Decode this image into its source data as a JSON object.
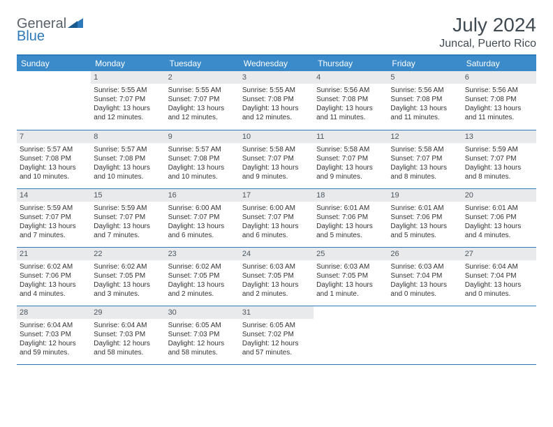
{
  "logo": {
    "line1": "General",
    "line2": "Blue"
  },
  "title": "July 2024",
  "location": "Juncal, Puerto Rico",
  "dayHeaders": [
    "Sunday",
    "Monday",
    "Tuesday",
    "Wednesday",
    "Thursday",
    "Friday",
    "Saturday"
  ],
  "colors": {
    "header_bg": "#3b8aca",
    "border": "#2e79b9",
    "daynum_bg": "#e8eaec",
    "text": "#333333"
  },
  "weeks": [
    [
      null,
      {
        "n": "1",
        "sr": "Sunrise: 5:55 AM",
        "ss": "Sunset: 7:07 PM",
        "dl": "Daylight: 13 hours and 12 minutes."
      },
      {
        "n": "2",
        "sr": "Sunrise: 5:55 AM",
        "ss": "Sunset: 7:07 PM",
        "dl": "Daylight: 13 hours and 12 minutes."
      },
      {
        "n": "3",
        "sr": "Sunrise: 5:55 AM",
        "ss": "Sunset: 7:08 PM",
        "dl": "Daylight: 13 hours and 12 minutes."
      },
      {
        "n": "4",
        "sr": "Sunrise: 5:56 AM",
        "ss": "Sunset: 7:08 PM",
        "dl": "Daylight: 13 hours and 11 minutes."
      },
      {
        "n": "5",
        "sr": "Sunrise: 5:56 AM",
        "ss": "Sunset: 7:08 PM",
        "dl": "Daylight: 13 hours and 11 minutes."
      },
      {
        "n": "6",
        "sr": "Sunrise: 5:56 AM",
        "ss": "Sunset: 7:08 PM",
        "dl": "Daylight: 13 hours and 11 minutes."
      }
    ],
    [
      {
        "n": "7",
        "sr": "Sunrise: 5:57 AM",
        "ss": "Sunset: 7:08 PM",
        "dl": "Daylight: 13 hours and 10 minutes."
      },
      {
        "n": "8",
        "sr": "Sunrise: 5:57 AM",
        "ss": "Sunset: 7:08 PM",
        "dl": "Daylight: 13 hours and 10 minutes."
      },
      {
        "n": "9",
        "sr": "Sunrise: 5:57 AM",
        "ss": "Sunset: 7:08 PM",
        "dl": "Daylight: 13 hours and 10 minutes."
      },
      {
        "n": "10",
        "sr": "Sunrise: 5:58 AM",
        "ss": "Sunset: 7:07 PM",
        "dl": "Daylight: 13 hours and 9 minutes."
      },
      {
        "n": "11",
        "sr": "Sunrise: 5:58 AM",
        "ss": "Sunset: 7:07 PM",
        "dl": "Daylight: 13 hours and 9 minutes."
      },
      {
        "n": "12",
        "sr": "Sunrise: 5:58 AM",
        "ss": "Sunset: 7:07 PM",
        "dl": "Daylight: 13 hours and 8 minutes."
      },
      {
        "n": "13",
        "sr": "Sunrise: 5:59 AM",
        "ss": "Sunset: 7:07 PM",
        "dl": "Daylight: 13 hours and 8 minutes."
      }
    ],
    [
      {
        "n": "14",
        "sr": "Sunrise: 5:59 AM",
        "ss": "Sunset: 7:07 PM",
        "dl": "Daylight: 13 hours and 7 minutes."
      },
      {
        "n": "15",
        "sr": "Sunrise: 5:59 AM",
        "ss": "Sunset: 7:07 PM",
        "dl": "Daylight: 13 hours and 7 minutes."
      },
      {
        "n": "16",
        "sr": "Sunrise: 6:00 AM",
        "ss": "Sunset: 7:07 PM",
        "dl": "Daylight: 13 hours and 6 minutes."
      },
      {
        "n": "17",
        "sr": "Sunrise: 6:00 AM",
        "ss": "Sunset: 7:07 PM",
        "dl": "Daylight: 13 hours and 6 minutes."
      },
      {
        "n": "18",
        "sr": "Sunrise: 6:01 AM",
        "ss": "Sunset: 7:06 PM",
        "dl": "Daylight: 13 hours and 5 minutes."
      },
      {
        "n": "19",
        "sr": "Sunrise: 6:01 AM",
        "ss": "Sunset: 7:06 PM",
        "dl": "Daylight: 13 hours and 5 minutes."
      },
      {
        "n": "20",
        "sr": "Sunrise: 6:01 AM",
        "ss": "Sunset: 7:06 PM",
        "dl": "Daylight: 13 hours and 4 minutes."
      }
    ],
    [
      {
        "n": "21",
        "sr": "Sunrise: 6:02 AM",
        "ss": "Sunset: 7:06 PM",
        "dl": "Daylight: 13 hours and 4 minutes."
      },
      {
        "n": "22",
        "sr": "Sunrise: 6:02 AM",
        "ss": "Sunset: 7:05 PM",
        "dl": "Daylight: 13 hours and 3 minutes."
      },
      {
        "n": "23",
        "sr": "Sunrise: 6:02 AM",
        "ss": "Sunset: 7:05 PM",
        "dl": "Daylight: 13 hours and 2 minutes."
      },
      {
        "n": "24",
        "sr": "Sunrise: 6:03 AM",
        "ss": "Sunset: 7:05 PM",
        "dl": "Daylight: 13 hours and 2 minutes."
      },
      {
        "n": "25",
        "sr": "Sunrise: 6:03 AM",
        "ss": "Sunset: 7:05 PM",
        "dl": "Daylight: 13 hours and 1 minute."
      },
      {
        "n": "26",
        "sr": "Sunrise: 6:03 AM",
        "ss": "Sunset: 7:04 PM",
        "dl": "Daylight: 13 hours and 0 minutes."
      },
      {
        "n": "27",
        "sr": "Sunrise: 6:04 AM",
        "ss": "Sunset: 7:04 PM",
        "dl": "Daylight: 13 hours and 0 minutes."
      }
    ],
    [
      {
        "n": "28",
        "sr": "Sunrise: 6:04 AM",
        "ss": "Sunset: 7:03 PM",
        "dl": "Daylight: 12 hours and 59 minutes."
      },
      {
        "n": "29",
        "sr": "Sunrise: 6:04 AM",
        "ss": "Sunset: 7:03 PM",
        "dl": "Daylight: 12 hours and 58 minutes."
      },
      {
        "n": "30",
        "sr": "Sunrise: 6:05 AM",
        "ss": "Sunset: 7:03 PM",
        "dl": "Daylight: 12 hours and 58 minutes."
      },
      {
        "n": "31",
        "sr": "Sunrise: 6:05 AM",
        "ss": "Sunset: 7:02 PM",
        "dl": "Daylight: 12 hours and 57 minutes."
      },
      null,
      null,
      null
    ]
  ]
}
